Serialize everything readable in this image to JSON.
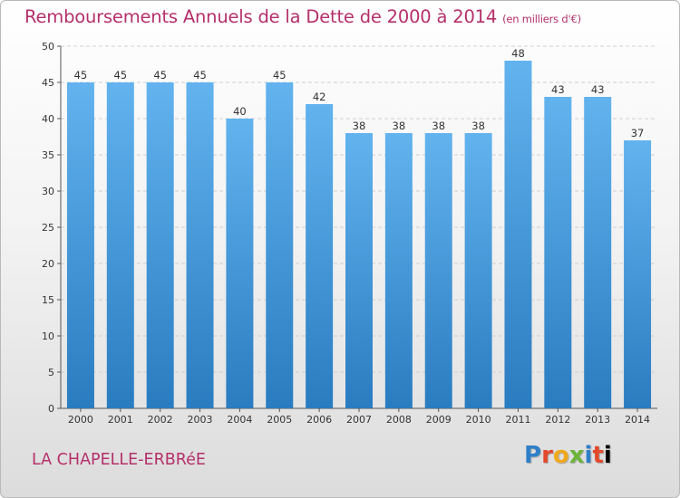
{
  "chart_data": {
    "type": "bar",
    "title": "Remboursements Annuels de la Dette de 2000 à 2014",
    "unit": "(en milliers d'€)",
    "categories": [
      "2000",
      "2001",
      "2002",
      "2003",
      "2004",
      "2005",
      "2006",
      "2007",
      "2008",
      "2009",
      "2010",
      "2011",
      "2012",
      "2013",
      "2014"
    ],
    "values": [
      45,
      45,
      45,
      45,
      40,
      45,
      42,
      38,
      38,
      38,
      38,
      48,
      43,
      43,
      37
    ],
    "ylim": [
      0,
      50
    ],
    "yticks": [
      0,
      5,
      10,
      15,
      20,
      25,
      30,
      35,
      40,
      45,
      50
    ],
    "grid": true,
    "legend": "none",
    "bar_color_top": "#62b3ee",
    "bar_color_bottom": "#2a7cc0",
    "title_color": "#b5306b"
  },
  "location": "LA CHAPELLE-ERBRéE",
  "logo": {
    "text": "Proxiti",
    "letters": [
      "P",
      "r",
      "o",
      "x",
      "i",
      "t",
      "i"
    ]
  }
}
